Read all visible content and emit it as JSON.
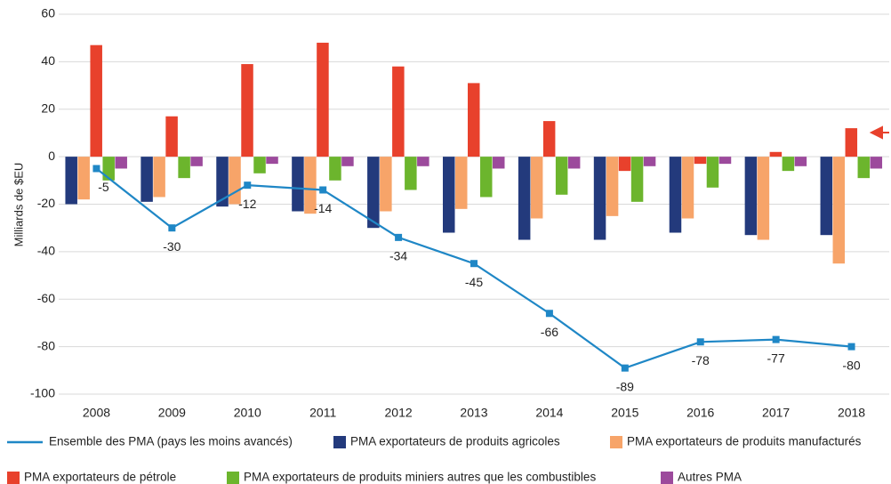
{
  "chart_data": {
    "type": "bar-line",
    "y_label": "Milliards de $EU",
    "categories": [
      "2008",
      "2009",
      "2010",
      "2011",
      "2012",
      "2013",
      "2014",
      "2015",
      "2016",
      "2017",
      "2018"
    ],
    "ylim": [
      -100,
      60
    ],
    "yticks": [
      -100,
      -80,
      -60,
      -40,
      -20,
      0,
      20,
      40,
      60
    ],
    "grid": true,
    "series": [
      {
        "name": "Ensemble des PMA (pays les moins avancés)",
        "color": "#1f87c6",
        "kind": "line",
        "values": [
          -5,
          -30,
          -12,
          -14,
          -34,
          -45,
          -66,
          -89,
          -78,
          -77,
          -80
        ]
      },
      {
        "name": "PMA exportateurs de produits agricoles",
        "color": "#233a7c",
        "kind": "bar",
        "values": [
          -20,
          -19,
          -21,
          -23,
          -30,
          -32,
          -35,
          -35,
          -32,
          -33,
          -33
        ]
      },
      {
        "name": "PMA exportateurs de produits manufacturés",
        "color": "#f7a469",
        "kind": "bar",
        "values": [
          -18,
          -17,
          -20,
          -24,
          -23,
          -22,
          -26,
          -25,
          -26,
          -35,
          -45
        ]
      },
      {
        "name": "PMA exportateurs de pétrole",
        "color": "#e8412c",
        "kind": "bar",
        "values": [
          47,
          17,
          39,
          48,
          38,
          31,
          15,
          -6,
          -3,
          2,
          12
        ]
      },
      {
        "name": "PMA exportateurs de produits miniers autres que les combustibles",
        "color": "#6cb52d",
        "kind": "bar",
        "values": [
          -10,
          -9,
          -7,
          -10,
          -14,
          -17,
          -16,
          -19,
          -13,
          -6,
          -9
        ]
      },
      {
        "name": "Autres PMA",
        "color": "#9c4a9c",
        "kind": "bar",
        "values": [
          -5,
          -4,
          -3,
          -4,
          -4,
          -5,
          -5,
          -4,
          -3,
          -4,
          -5
        ]
      }
    ]
  }
}
